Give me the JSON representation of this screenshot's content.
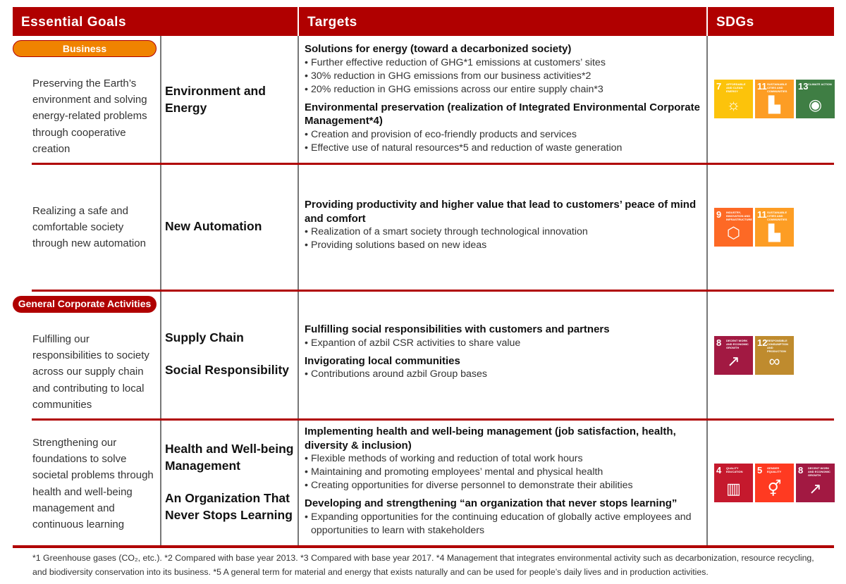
{
  "header": {
    "col1": "Essential Goals",
    "col2": "Targets",
    "col3": "SDGs"
  },
  "colors": {
    "accent": "#b00000",
    "business_badge": "#f08300"
  },
  "badges": {
    "business": "Business",
    "general": "General Corporate Activities"
  },
  "rows": [
    {
      "goal": "Preserving the Earth’s environment and solving energy-related problems through cooperative creation",
      "themes": [
        "Environment and Energy"
      ],
      "targets": [
        {
          "heading": "Solutions for energy (toward a decarbonized society)",
          "bullets": [
            "Further effective reduction of GHG*1 emissions at customers’ sites",
            "30% reduction in GHG emissions from our business activities*2",
            "20% reduction in GHG emissions across our entire supply chain*3"
          ]
        },
        {
          "heading": "Environmental preservation (realization of Integrated Environmental Corporate Management*4)",
          "bullets": [
            "Creation and provision of eco-friendly products and services",
            "Effective use of natural resources*5 and reduction of waste generation"
          ]
        }
      ],
      "sdgs": [
        {
          "num": "7",
          "label": "Affordable and clean energy",
          "color": "#FCC30B",
          "icon": "sun-power-icon"
        },
        {
          "num": "11",
          "label": "Sustainable cities and communities",
          "color": "#FD9D24",
          "icon": "city-icon"
        },
        {
          "num": "13",
          "label": "Climate action",
          "color": "#3F7E44",
          "icon": "eye-globe-icon"
        }
      ]
    },
    {
      "goal": "Realizing a safe and comfortable society through new automation",
      "themes": [
        "New Automation"
      ],
      "targets": [
        {
          "heading": "Providing productivity and higher value that lead to customers’ peace of mind and comfort",
          "bullets": [
            "Realization of a smart society through technological innovation",
            "Providing solutions based on new ideas"
          ]
        }
      ],
      "sdgs": [
        {
          "num": "9",
          "label": "Industry, innovation and infrastructure",
          "color": "#FD6925",
          "icon": "cubes-icon"
        },
        {
          "num": "11",
          "label": "Sustainable cities and communities",
          "color": "#FD9D24",
          "icon": "city-icon"
        }
      ]
    },
    {
      "goal": "Fulfilling our responsibilities to society across our supply chain and contributing to local communities",
      "themes": [
        "Supply Chain",
        "Social Responsibility"
      ],
      "targets": [
        {
          "heading": "Fulfilling social responsibilities with customers and partners",
          "bullets": [
            "Expantion of azbil CSR activities to share value"
          ]
        },
        {
          "heading": "Invigorating local communities",
          "bullets": [
            "Contributions around azbil Group bases"
          ]
        }
      ],
      "sdgs": [
        {
          "num": "8",
          "label": "Decent work and economic growth",
          "color": "#A21942",
          "icon": "growth-chart-icon"
        },
        {
          "num": "12",
          "label": "Responsible consumption and production",
          "color": "#BF8B2E",
          "icon": "infinity-icon"
        }
      ]
    },
    {
      "goal": "Strengthening our foundations to solve societal problems through health and well-being management and continuous learning",
      "themes": [
        "Health and Well-being Management",
        "An Organization That Never Stops Learning"
      ],
      "targets": [
        {
          "heading": "Implementing health and well-being management (job satisfaction, health, diversity & inclusion)",
          "bullets": [
            "Flexible methods of working and reduction of total work hours",
            "Maintaining and promoting employees’ mental and physical health",
            "Creating opportunities for diverse personnel to demonstrate their abilities"
          ]
        },
        {
          "heading": "Developing and strengthening “an organization that never stops learning”",
          "bullets": [
            "Expanding opportunities for the continuing education of globally active employees and opportunities to learn with stakeholders"
          ]
        }
      ],
      "sdgs": [
        {
          "num": "4",
          "label": "Quality education",
          "color": "#C5192D",
          "icon": "book-icon"
        },
        {
          "num": "5",
          "label": "Gender equality",
          "color": "#FF3A21",
          "icon": "gender-equality-icon"
        },
        {
          "num": "8",
          "label": "Decent work and economic growth",
          "color": "#A21942",
          "icon": "growth-chart-icon"
        }
      ]
    }
  ],
  "footnote": "*1 Greenhouse gases (CO₂, etc.). *2 Compared with base year 2013. *3 Compared with base year 2017. *4 Management that integrates environmental activity such as decarbonization, resource recycling, and biodiversity conservation into its business. *5 A general term for material and energy that exists naturally and can be used for people’s daily lives and in production activities."
}
